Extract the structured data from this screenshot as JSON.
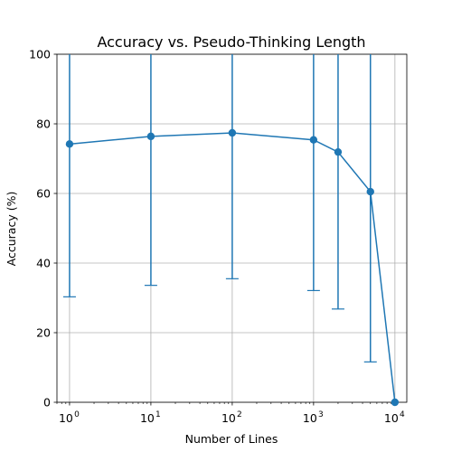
{
  "chart_data": {
    "type": "line",
    "title": "Accuracy vs. Pseudo-Thinking Length",
    "xlabel": "Number of Lines",
    "ylabel": "Accuracy (%)",
    "xscale": "log",
    "xlim": [
      0.7,
      14000
    ],
    "ylim": [
      0,
      100
    ],
    "grid": true,
    "legend": "none",
    "x_ticks": [
      {
        "base": "10",
        "exp": "0",
        "value": 1
      },
      {
        "base": "10",
        "exp": "1",
        "value": 10
      },
      {
        "base": "10",
        "exp": "2",
        "value": 100
      },
      {
        "base": "10",
        "exp": "3",
        "value": 1000
      },
      {
        "base": "10",
        "exp": "4",
        "value": 10000
      }
    ],
    "y_ticks": [
      {
        "label": "0",
        "value": 0
      },
      {
        "label": "20",
        "value": 20
      },
      {
        "label": "40",
        "value": 40
      },
      {
        "label": "60",
        "value": 60
      },
      {
        "label": "80",
        "value": 80
      },
      {
        "label": "100",
        "value": 100
      }
    ],
    "series": [
      {
        "color": "#1f77b4",
        "marker": "circle",
        "points": [
          {
            "x": 1,
            "y": 74.2,
            "err_low": 30.3,
            "err_high": 118
          },
          {
            "x": 10,
            "y": 76.4,
            "err_low": 33.6,
            "err_high": 119
          },
          {
            "x": 100,
            "y": 77.4,
            "err_low": 35.5,
            "err_high": 119
          },
          {
            "x": 1000,
            "y": 75.4,
            "err_low": 32.1,
            "err_high": 118
          },
          {
            "x": 2000,
            "y": 71.9,
            "err_low": 26.8,
            "err_high": 117
          },
          {
            "x": 5000,
            "y": 60.5,
            "err_low": 11.6,
            "err_high": 109
          },
          {
            "x": 10000,
            "y": 0,
            "err_low": 0,
            "err_high": 0
          }
        ]
      }
    ]
  }
}
